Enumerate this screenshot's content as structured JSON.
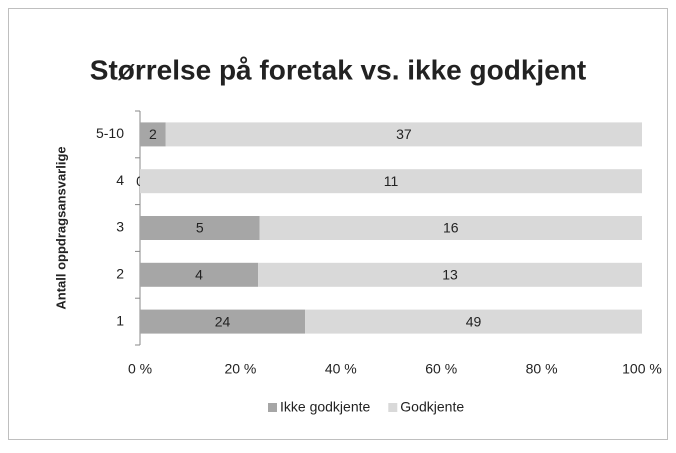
{
  "chart_data": {
    "type": "bar",
    "orientation": "horizontal",
    "stacking": "percent",
    "title": "Størrelse på foretak vs. ikke godkjent",
    "y_label": "Antall oppdragsansvarlige",
    "categories": [
      "1",
      "2",
      "3",
      "4",
      "5-10"
    ],
    "series": [
      {
        "name": "Ikke godkjente",
        "color": "#a6a6a6",
        "values": [
          24,
          4,
          5,
          0,
          2
        ]
      },
      {
        "name": "Godkjente",
        "color": "#d9d9d9",
        "values": [
          49,
          13,
          16,
          11,
          37
        ]
      }
    ],
    "xlim": [
      0,
      100
    ],
    "xticks": [
      {
        "value": 0,
        "label": "0 %"
      },
      {
        "value": 20,
        "label": "20 %"
      },
      {
        "value": 40,
        "label": "40 %"
      },
      {
        "value": 60,
        "label": "60 %"
      },
      {
        "value": 80,
        "label": "80 %"
      },
      {
        "value": 100,
        "label": "100 %"
      }
    ],
    "legend": "bottom"
  }
}
